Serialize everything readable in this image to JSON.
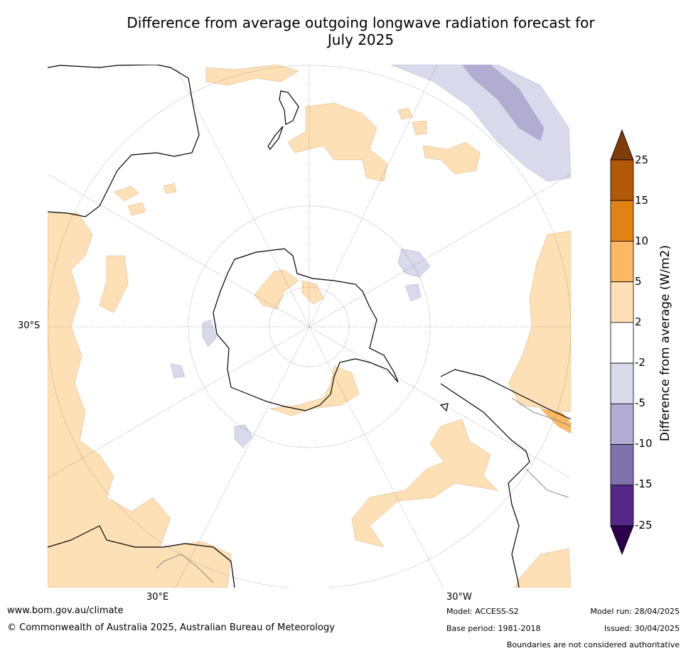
{
  "title_line1": "Difference from average outgoing longwave radiation forecast for",
  "title_line2": "July 2025",
  "map": {
    "latitude_label": "30°S",
    "longitude_labels": {
      "east": "30°E",
      "west": "30°W"
    }
  },
  "colorbar": {
    "title": "Difference from average (W/m2)",
    "ticks": [
      "25",
      "15",
      "10",
      "5",
      "2",
      "-2",
      "-5",
      "-10",
      "-15",
      "-25"
    ],
    "colors": {
      "above_25": "#7f3b08",
      "15_25": "#b35806",
      "10_15": "#e08214",
      "5_10": "#fdb863",
      "2_5": "#fee0b6",
      "-2_2": "#ffffff",
      "-5_-2": "#d8daeb",
      "-10_-5": "#b2abd2",
      "-15_-10": "#8073ac",
      "-25_-15": "#542788",
      "below_-25": "#2d004b"
    }
  },
  "footer": {
    "website": "www.bom.gov.au/climate",
    "copyright": "© Commonwealth of Australia 2025, Australian Bureau of Meteorology",
    "model": "Model: ACCESS-S2",
    "base_period": "Base period: 1981-2018",
    "model_run": "Model run: 28/04/2025",
    "issued": "Issued: 30/04/2025",
    "disclaimer": "Boundaries are not considered authoritative"
  }
}
